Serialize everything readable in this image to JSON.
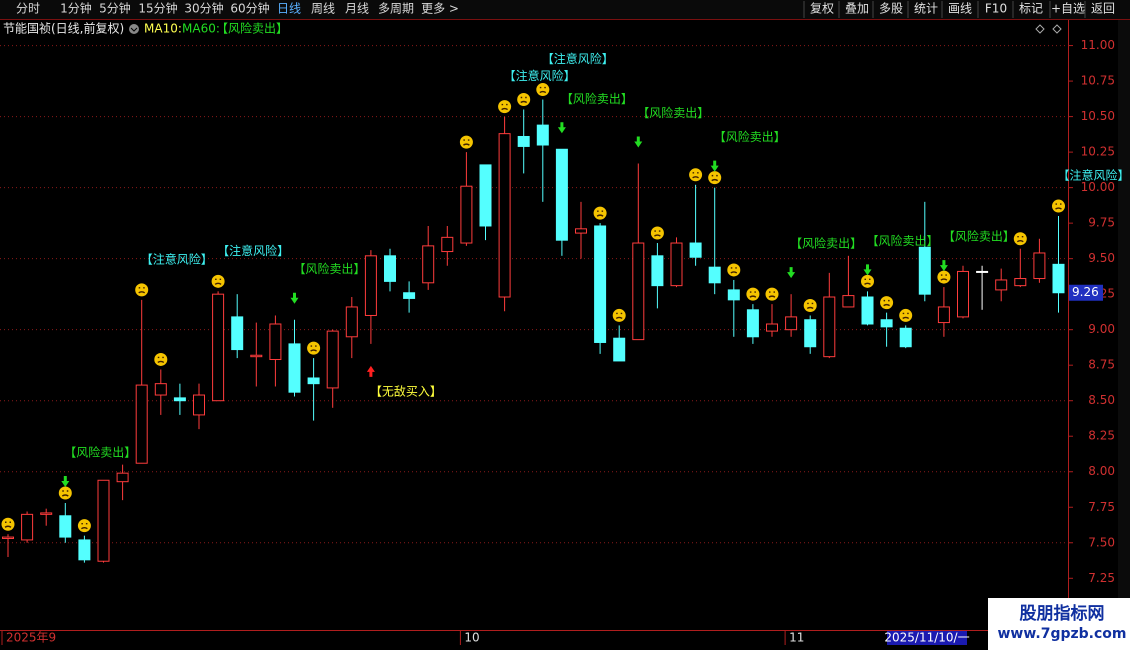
{
  "toolbar": {
    "periods": [
      "分时",
      "1分钟",
      "5分钟",
      "15分钟",
      "30分钟",
      "60分钟",
      "日线",
      "周线",
      "月线",
      "多周期",
      "更多 >"
    ],
    "buttons": [
      "复权",
      "叠加",
      "多股",
      "统计",
      "画线",
      "F10",
      "标记",
      "+自选",
      "返回"
    ]
  },
  "chart_data": {
    "type": "candlestick",
    "title": "节能国祯(日线,前复权)",
    "ma10": "MA10:",
    "ma60": "MA60:",
    "signal": "【风险卖出】",
    "categories": [
      "2025年9",
      null,
      null,
      null,
      null,
      null,
      null,
      null,
      null,
      null,
      null,
      null,
      null,
      null,
      null,
      null,
      null,
      null,
      null,
      null,
      null,
      null,
      null,
      null,
      "10",
      null,
      null,
      null,
      null,
      null,
      null,
      null,
      null,
      null,
      null,
      null,
      null,
      null,
      null,
      null,
      null,
      "11",
      null,
      null,
      null,
      null,
      null,
      null,
      null,
      null,
      null,
      null,
      null,
      null,
      null,
      null
    ],
    "open": [
      7.53,
      7.52,
      7.7,
      7.69,
      7.52,
      7.37,
      7.93,
      8.06,
      8.54,
      8.52,
      8.4,
      8.5,
      9.09,
      8.81,
      8.79,
      8.9,
      8.66,
      8.59,
      8.95,
      9.1,
      9.52,
      9.26,
      9.33,
      9.55,
      9.61,
      10.16,
      9.23,
      10.36,
      10.44,
      10.27,
      9.68,
      9.73,
      8.94,
      8.93,
      9.52,
      9.31,
      9.61,
      9.44,
      9.28,
      9.14,
      8.99,
      9.0,
      9.07,
      8.81,
      9.16,
      9.23,
      9.07,
      9.01,
      9.58,
      9.05,
      9.09,
      9.41,
      9.28,
      9.31,
      9.36,
      9.46
    ],
    "high": [
      7.56,
      7.72,
      7.74,
      7.78,
      7.55,
      7.94,
      8.05,
      9.21,
      8.72,
      8.62,
      8.62,
      9.27,
      9.25,
      9.05,
      9.1,
      9.07,
      8.8,
      9.0,
      9.23,
      9.56,
      9.57,
      9.34,
      9.73,
      9.73,
      10.25,
      10.16,
      10.5,
      10.55,
      10.62,
      10.27,
      9.9,
      9.75,
      9.03,
      10.17,
      9.61,
      9.65,
      10.02,
      10.0,
      9.35,
      9.18,
      9.18,
      9.25,
      9.1,
      9.4,
      9.52,
      9.27,
      9.12,
      9.03,
      9.9,
      9.3,
      9.45,
      9.45,
      9.43,
      9.57,
      9.64,
      9.8
    ],
    "low": [
      7.4,
      7.5,
      7.62,
      7.5,
      7.36,
      7.36,
      7.8,
      8.06,
      8.4,
      8.4,
      8.3,
      8.5,
      8.8,
      8.6,
      8.6,
      8.53,
      8.36,
      8.45,
      8.8,
      8.9,
      9.27,
      9.12,
      9.28,
      9.45,
      9.59,
      9.63,
      9.13,
      10.1,
      9.9,
      9.52,
      9.5,
      8.83,
      8.78,
      8.93,
      9.15,
      9.3,
      9.45,
      9.25,
      8.95,
      8.9,
      8.95,
      8.95,
      8.83,
      8.8,
      9.16,
      9.03,
      8.88,
      8.87,
      9.2,
      8.95,
      9.08,
      9.14,
      9.2,
      9.3,
      9.33,
      9.12
    ],
    "close": [
      7.54,
      7.7,
      7.71,
      7.54,
      7.38,
      7.94,
      7.99,
      8.61,
      8.62,
      8.5,
      8.54,
      9.25,
      8.86,
      8.82,
      9.04,
      8.56,
      8.62,
      8.99,
      9.16,
      9.52,
      9.34,
      9.22,
      9.59,
      9.65,
      10.01,
      9.73,
      10.38,
      10.29,
      10.3,
      9.63,
      9.71,
      8.91,
      8.78,
      9.61,
      9.31,
      9.61,
      9.51,
      9.33,
      9.21,
      8.95,
      9.04,
      9.09,
      8.88,
      9.23,
      9.24,
      9.04,
      9.02,
      8.88,
      9.25,
      9.16,
      9.41,
      9.41,
      9.35,
      9.36,
      9.54,
      9.26
    ],
    "up_color": "#ff3c3c",
    "down_color": "#54ffff",
    "flat_color": "#ffffff",
    "sell_labels": [
      null,
      null,
      null,
      "【风险卖出】",
      null,
      null,
      null,
      null,
      null,
      null,
      null,
      null,
      null,
      null,
      null,
      "【风险卖出】",
      null,
      null,
      null,
      null,
      null,
      null,
      null,
      null,
      null,
      null,
      null,
      null,
      null,
      "【风险卖出】",
      null,
      null,
      null,
      "【风险卖出】",
      null,
      null,
      null,
      "【风险卖出】",
      null,
      null,
      null,
      "【风险卖出】",
      null,
      null,
      null,
      "【风险卖出】",
      null,
      null,
      null,
      "【风险卖出】",
      null,
      null,
      null,
      null,
      null,
      null
    ],
    "risk_labels": [
      null,
      null,
      null,
      null,
      null,
      null,
      null,
      "【注意风险】",
      null,
      null,
      null,
      "【注意风险】",
      null,
      null,
      null,
      null,
      null,
      null,
      null,
      null,
      null,
      null,
      null,
      null,
      null,
      null,
      "【注意风险】",
      null,
      "【注意风险】",
      null,
      null,
      null,
      null,
      null,
      null,
      null,
      null,
      null,
      null,
      null,
      null,
      null,
      null,
      null,
      null,
      null,
      null,
      null,
      null,
      null,
      null,
      null,
      null,
      null,
      null,
      "【注意风险】"
    ],
    "buy_labels": [
      null,
      null,
      null,
      null,
      null,
      null,
      null,
      null,
      null,
      null,
      null,
      null,
      null,
      null,
      null,
      null,
      null,
      null,
      null,
      "【无敌买入】",
      null,
      null,
      null,
      null,
      null,
      null,
      null,
      null,
      null,
      null,
      null,
      null,
      null,
      null,
      null,
      null,
      null,
      null,
      null,
      null,
      null,
      null,
      null,
      null,
      null,
      null,
      null,
      null,
      null,
      null,
      null,
      null,
      null,
      null,
      null,
      null
    ],
    "sell_color": "#22dd22",
    "risk_color": "#3ef0f0",
    "buy_color": "#ffff3c",
    "ylim": [
      6.9,
      11.18
    ],
    "yticks": [
      {
        "value": 7.25,
        "label": "7.25"
      },
      {
        "value": 7.5,
        "label": "7.50"
      },
      {
        "value": 7.75,
        "label": "7.75"
      },
      {
        "value": 8,
        "label": "8.00"
      },
      {
        "value": 8.25,
        "label": "8.25"
      },
      {
        "value": 8.5,
        "label": "8.50"
      },
      {
        "value": 8.75,
        "label": "8.75"
      },
      {
        "value": 9,
        "label": "9.00"
      },
      {
        "value": 9.25,
        "label": "9.25"
      },
      {
        "value": 9.5,
        "label": "9.50"
      },
      {
        "value": 9.75,
        "label": "9.75"
      },
      {
        "value": 10,
        "label": "10.00"
      },
      {
        "value": 10.25,
        "label": "10.25"
      },
      {
        "value": 10.5,
        "label": "10.50"
      },
      {
        "value": 10.75,
        "label": "10.75"
      },
      {
        "value": 11,
        "label": "11.00"
      }
    ],
    "grid": true,
    "cursor_date": "2025/11/10/一"
  },
  "watermark": {
    "name": "股朋指标网",
    "url": "www.7gpzb.com"
  }
}
